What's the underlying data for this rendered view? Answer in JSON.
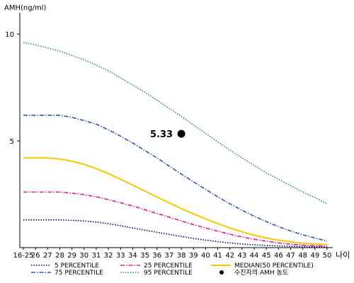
{
  "chart_data": {
    "type": "line",
    "title": "",
    "ylabel": "AMH(ng/ml)",
    "xlabel": "나이",
    "ylim": [
      0,
      11
    ],
    "yticks": [
      5,
      10
    ],
    "grid": false,
    "legend_position": "bottom",
    "categories": [
      "16-25",
      "26",
      "27",
      "28",
      "29",
      "30",
      "31",
      "32",
      "33",
      "34",
      "35",
      "36",
      "37",
      "38",
      "39",
      "40",
      "41",
      "42",
      "43",
      "44",
      "45",
      "46",
      "47",
      "48",
      "49",
      "50"
    ],
    "series": [
      {
        "name": "5 PERCENTILE",
        "color": "#000080",
        "dash": "dotted",
        "values": [
          1.3,
          1.3,
          1.3,
          1.3,
          1.28,
          1.25,
          1.2,
          1.12,
          1.02,
          0.92,
          0.82,
          0.72,
          0.62,
          0.52,
          0.43,
          0.35,
          0.28,
          0.22,
          0.17,
          0.13,
          0.1,
          0.08,
          0.06,
          0.05,
          0.04,
          0.03
        ]
      },
      {
        "name": "25 PERCENTILE",
        "color": "#e6198c",
        "dash": "dashdot",
        "values": [
          2.6,
          2.6,
          2.6,
          2.6,
          2.55,
          2.48,
          2.38,
          2.25,
          2.1,
          1.95,
          1.78,
          1.6,
          1.43,
          1.25,
          1.08,
          0.92,
          0.77,
          0.63,
          0.5,
          0.39,
          0.3,
          0.22,
          0.16,
          0.12,
          0.09,
          0.07
        ]
      },
      {
        "name": "MEDIAN(50 PERCENTILE)",
        "color": "#f5c800",
        "dash": "solid",
        "values": [
          4.2,
          4.2,
          4.2,
          4.15,
          4.05,
          3.9,
          3.7,
          3.47,
          3.2,
          2.93,
          2.65,
          2.37,
          2.1,
          1.83,
          1.58,
          1.35,
          1.12,
          0.92,
          0.74,
          0.58,
          0.45,
          0.35,
          0.27,
          0.21,
          0.17,
          0.14
        ]
      },
      {
        "name": "75 PERCENTILE",
        "color": "#3355bb",
        "dash": "dashdot",
        "values": [
          6.2,
          6.2,
          6.2,
          6.2,
          6.1,
          5.95,
          5.78,
          5.52,
          5.22,
          4.9,
          4.55,
          4.2,
          3.82,
          3.45,
          3.08,
          2.73,
          2.38,
          2.05,
          1.75,
          1.47,
          1.22,
          0.98,
          0.78,
          0.6,
          0.45,
          0.3
        ]
      },
      {
        "name": "95 PERCENTILE",
        "color": "#2e8b57",
        "dash": "dotted",
        "values": [
          9.6,
          9.5,
          9.35,
          9.2,
          9.0,
          8.8,
          8.55,
          8.28,
          7.95,
          7.62,
          7.28,
          6.9,
          6.52,
          6.15,
          5.75,
          5.35,
          4.95,
          4.57,
          4.2,
          3.85,
          3.5,
          3.2,
          2.9,
          2.6,
          2.35,
          2.05
        ]
      }
    ],
    "patient_point": {
      "name": "수진자의 AMH 농도",
      "x": "38",
      "value": 5.33,
      "label": "5.33",
      "color": "#000000"
    }
  }
}
